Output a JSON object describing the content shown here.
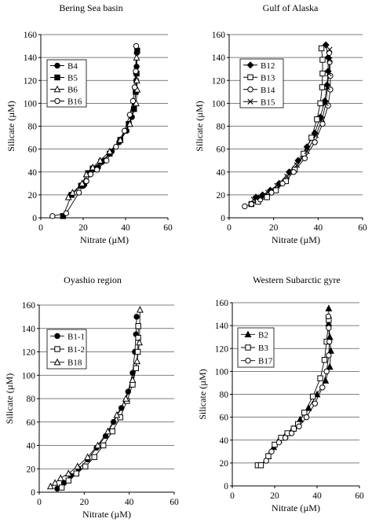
{
  "chart_data": [
    {
      "type": "scatter",
      "title": "Bering Sea basin",
      "xlabel": "Nitrate (µM)",
      "ylabel": "Silicate (µM)",
      "xlim": [
        0,
        60
      ],
      "ylim": [
        0,
        160
      ],
      "xticks": [
        "0",
        "20",
        "40",
        "60"
      ],
      "yticks": [
        "0",
        "20",
        "40",
        "60",
        "80",
        "100",
        "120",
        "140",
        "160"
      ],
      "grid": "horizontal",
      "legend_position": "top-left",
      "series": [
        {
          "name": "B4",
          "marker": "circle",
          "fill": "#000000",
          "x": [
            20.1,
            21.5,
            23.5,
            27,
            30,
            33.5,
            37,
            40.5,
            43,
            44.2,
            44.8,
            45,
            45.2,
            45.3
          ],
          "y": [
            28,
            32,
            38,
            44,
            50,
            58,
            66,
            76,
            88,
            100,
            110,
            120,
            132,
            144
          ]
        },
        {
          "name": "B5",
          "marker": "square",
          "fill": "#000000",
          "x": [
            10.5,
            14.5,
            19,
            20.5,
            22.3,
            24.5,
            28.5,
            32.5,
            37.5,
            41.5,
            44,
            44.8,
            45.2,
            45.5
          ],
          "y": [
            1.5,
            20,
            28,
            30,
            39,
            43,
            49,
            56,
            68,
            82,
            95,
            110,
            126,
            146
          ]
        },
        {
          "name": "B6",
          "marker": "triangle",
          "fill": "#ffffff",
          "x": [
            13,
            15,
            19.5,
            21.5,
            24.5,
            28,
            32.5,
            37.5,
            42,
            45,
            45.5,
            45.3,
            45,
            45.2
          ],
          "y": [
            18,
            22,
            30,
            38,
            44,
            50,
            58,
            68,
            82,
            100,
            112,
            120,
            128,
            140
          ]
        },
        {
          "name": "B16",
          "marker": "circle",
          "fill": "#ffffff",
          "x": [
            5.5,
            12,
            18,
            21.5,
            23.5,
            26.5,
            31,
            35.5,
            39.5,
            42,
            43.5,
            44.3,
            44.8,
            45
          ],
          "y": [
            1.5,
            4,
            22,
            32,
            38,
            42,
            50,
            62,
            76,
            90,
            102,
            114,
            128,
            150
          ]
        }
      ]
    },
    {
      "type": "scatter",
      "title": "Gulf of Alaska",
      "xlabel": "Nitrate (µM)",
      "ylabel": "Silicate (µM)",
      "xlim": [
        0,
        60
      ],
      "ylim": [
        0,
        160
      ],
      "xticks": [
        "0",
        "20",
        "40",
        "60"
      ],
      "yticks": [
        "0",
        "20",
        "40",
        "60",
        "80",
        "100",
        "120",
        "140",
        "160"
      ],
      "grid": "horizontal",
      "legend_position": "top-left",
      "series": [
        {
          "name": "B12",
          "marker": "diamond",
          "fill": "#000000",
          "x": [
            12,
            15,
            18.5,
            22.5,
            27,
            31,
            35,
            38.5,
            41,
            43,
            44,
            44.5,
            44.5,
            43.5
          ],
          "y": [
            18,
            20,
            24,
            30,
            40,
            50,
            62,
            74,
            88,
            102,
            116,
            128,
            140,
            151
          ]
        },
        {
          "name": "B13",
          "marker": "square",
          "fill": "#ffffff",
          "x": [
            10,
            13,
            17,
            21,
            25.5,
            29.5,
            33.5,
            37,
            39.5,
            41,
            41.8,
            42,
            42,
            41.5
          ],
          "y": [
            12,
            14,
            18,
            24,
            32,
            42,
            56,
            70,
            86,
            100,
            114,
            126,
            138,
            148
          ]
        },
        {
          "name": "B14",
          "marker": "circle",
          "fill": "#ffffff",
          "x": [
            7,
            10,
            14,
            19,
            24,
            29,
            34,
            38.5,
            42,
            44.5,
            45.5,
            45.5,
            45.2,
            45
          ],
          "y": [
            10,
            12,
            16,
            22,
            30,
            40,
            52,
            66,
            82,
            98,
            112,
            124,
            136,
            144
          ]
        },
        {
          "name": "B15",
          "marker": "x",
          "fill": "none",
          "x": [
            11,
            14,
            17.5,
            21.5,
            26,
            30.5,
            35,
            39,
            41.8,
            43.5,
            44.2,
            44.8,
            45.2,
            45.2
          ],
          "y": [
            16,
            18,
            22,
            28,
            36,
            46,
            58,
            72,
            86,
            100,
            114,
            126,
            138,
            147
          ]
        }
      ]
    },
    {
      "type": "scatter",
      "title": "Oyashio region",
      "xlabel": "Nitrate (µM)",
      "ylabel": "Silicate (µM)",
      "xlim": [
        0,
        60
      ],
      "ylim": [
        0,
        160
      ],
      "xticks": [
        "0",
        "20",
        "40",
        "60"
      ],
      "yticks": [
        "0",
        "20",
        "40",
        "60",
        "80",
        "100",
        "120",
        "140",
        "160"
      ],
      "grid": "horizontal",
      "legend_position": "top-left",
      "series": [
        {
          "name": "B1-1",
          "marker": "circle",
          "fill": "#000000",
          "x": [
            8,
            11,
            14,
            17.5,
            21.5,
            25.5,
            29.5,
            33,
            36.5,
            39.5,
            41.5,
            42.5,
            43,
            43.3
          ],
          "y": [
            3,
            8,
            14,
            20,
            28,
            38,
            48,
            60,
            72,
            86,
            102,
            120,
            135,
            150
          ]
        },
        {
          "name": "B1-2",
          "marker": "square",
          "fill": "#ffffff",
          "x": [
            10,
            13,
            16.5,
            20.5,
            24.5,
            28.5,
            32.5,
            36,
            39,
            41.5,
            43,
            43.8,
            44,
            44
          ],
          "y": [
            4,
            10,
            16,
            22,
            30,
            40,
            52,
            64,
            78,
            92,
            106,
            120,
            132,
            142
          ]
        },
        {
          "name": "B18",
          "marker": "triangle",
          "fill": "#ffffff",
          "x": [
            5,
            7,
            9.5,
            13,
            17,
            21.5,
            26,
            30.5,
            34.5,
            38.5,
            41.5,
            43.5,
            44.5,
            44.8
          ],
          "y": [
            5,
            8,
            12,
            16,
            22,
            30,
            40,
            52,
            66,
            80,
            96,
            112,
            128,
            156
          ]
        }
      ]
    },
    {
      "type": "scatter",
      "title": "Western Subarctic gyre",
      "xlabel": "Nitrate (µM)",
      "ylabel": "Silicate (µM)",
      "xlim": [
        0,
        60
      ],
      "ylim": [
        0,
        160
      ],
      "xticks": [
        "0",
        "20",
        "40",
        "60"
      ],
      "yticks": [
        "0",
        "20",
        "40",
        "60",
        "80",
        "100",
        "120",
        "140",
        "160"
      ],
      "grid": "horizontal",
      "legend_position": "top-left",
      "series": [
        {
          "name": "B2",
          "marker": "triangle",
          "fill": "#000000",
          "x": [
            17,
            19.5,
            22,
            25,
            28.5,
            32,
            36,
            40,
            44,
            46,
            46.5,
            46,
            45.5,
            45.5
          ],
          "y": [
            26,
            34,
            40,
            44,
            50,
            58,
            68,
            80,
            92,
            104,
            118,
            130,
            142,
            155
          ]
        },
        {
          "name": "B3",
          "marker": "square",
          "fill": "#ffffff",
          "x": [
            12,
            13.5,
            17,
            20,
            23,
            26,
            29,
            31,
            34,
            38,
            41.5,
            43.5,
            44.5,
            45.5
          ],
          "y": [
            18,
            18,
            26,
            36,
            42,
            46,
            50,
            54,
            64,
            78,
            94,
            110,
            126,
            145
          ]
        },
        {
          "name": "B17",
          "marker": "circle",
          "fill": "#ffffff",
          "x": [
            16,
            18.5,
            22,
            25,
            28,
            31.5,
            35,
            39,
            42.5,
            44.5,
            45.5,
            45.8,
            45.5,
            45.3
          ],
          "y": [
            22,
            30,
            38,
            42,
            46,
            52,
            60,
            72,
            86,
            100,
            114,
            126,
            138,
            148
          ]
        }
      ]
    }
  ]
}
